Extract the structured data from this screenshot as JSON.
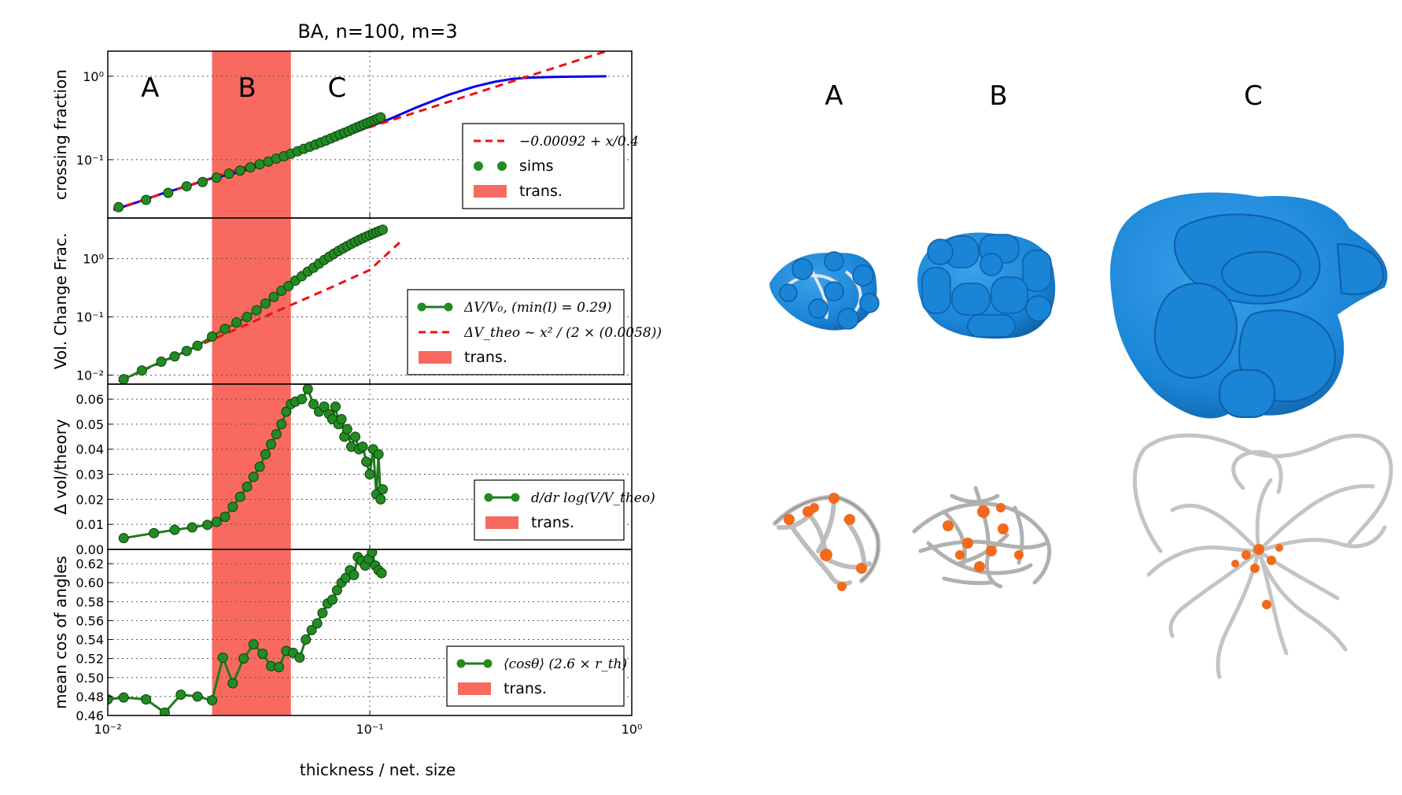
{
  "colors": {
    "band": "#f86a5f",
    "green": "#1f7a1f",
    "green_marker": "#228b22",
    "blue": "#0000ee",
    "red_dash": "#ee1111",
    "surface_blue": "#1a84d6",
    "tube_gray": "#bdbdbd",
    "node_orange": "#f26a1b"
  },
  "figure": {
    "title": "BA, n=100, m=3",
    "xlabel": "thickness / net. size",
    "x_ticks": [
      "10⁻²",
      "10⁻¹",
      "10⁰"
    ]
  },
  "region_labels": [
    "A",
    "B",
    "C"
  ],
  "renders": {
    "column_labels": [
      "A",
      "B",
      "C"
    ],
    "top_row": "blue-surface-renders",
    "bottom_row": "gray-tube-network-renders-with-orange-nodes"
  },
  "chart_data": [
    {
      "type": "line",
      "id": "crossing",
      "ylabel": "crossing fraction",
      "xscale": "log",
      "yscale": "log",
      "xlim": [
        0.01,
        1.0
      ],
      "ylim": [
        0.02,
        2.0
      ],
      "y_ticks": [
        {
          "v": 0.1,
          "label": "10⁻¹"
        },
        {
          "v": 1.0,
          "label": "10⁰"
        }
      ],
      "band": [
        0.025,
        0.05
      ],
      "grid": true,
      "legend_location": "lower-right",
      "legend": [
        {
          "kind": "dash",
          "label": "−0.00092 + x/0.4"
        },
        {
          "kind": "dots",
          "label": "sims"
        },
        {
          "kind": "band",
          "label": "trans."
        }
      ],
      "series": [
        {
          "kind": "blue-line",
          "x": [
            0.0105,
            0.013,
            0.016,
            0.02,
            0.025,
            0.03,
            0.04,
            0.05,
            0.06,
            0.08,
            0.1,
            0.12,
            0.15,
            0.2,
            0.25,
            0.3,
            0.35,
            0.4,
            0.5,
            0.6,
            0.7,
            0.8
          ],
          "y": [
            0.025,
            0.031,
            0.039,
            0.048,
            0.06,
            0.068,
            0.088,
            0.115,
            0.14,
            0.19,
            0.25,
            0.31,
            0.42,
            0.6,
            0.75,
            0.86,
            0.93,
            0.96,
            0.98,
            0.99,
            0.995,
            1.0
          ]
        },
        {
          "kind": "dash",
          "x": [
            0.0105,
            0.8
          ],
          "y": [
            0.0253,
            1.999
          ]
        },
        {
          "kind": "dots",
          "x": [
            0.011,
            0.014,
            0.017,
            0.02,
            0.023,
            0.026,
            0.029,
            0.032,
            0.035,
            0.038,
            0.041,
            0.044,
            0.047,
            0.05,
            0.053,
            0.056,
            0.059,
            0.062,
            0.065,
            0.068,
            0.071,
            0.074,
            0.077,
            0.08,
            0.083,
            0.086,
            0.089,
            0.092,
            0.095,
            0.098,
            0.101,
            0.104,
            0.107,
            0.11
          ],
          "y": [
            0.027,
            0.033,
            0.04,
            0.048,
            0.054,
            0.061,
            0.068,
            0.074,
            0.081,
            0.088,
            0.095,
            0.103,
            0.11,
            0.118,
            0.126,
            0.135,
            0.143,
            0.152,
            0.161,
            0.17,
            0.18,
            0.19,
            0.2,
            0.21,
            0.22,
            0.232,
            0.243,
            0.254,
            0.265,
            0.276,
            0.287,
            0.298,
            0.31,
            0.322
          ]
        }
      ]
    },
    {
      "type": "line",
      "id": "volume",
      "ylabel": "Vol. Change Frac.",
      "xscale": "log",
      "yscale": "log",
      "xlim": [
        0.01,
        1.0
      ],
      "ylim": [
        0.007,
        5.0
      ],
      "y_ticks": [
        {
          "v": 0.01,
          "label": "10⁻²"
        },
        {
          "v": 0.1,
          "label": "10⁻¹"
        },
        {
          "v": 1.0,
          "label": "10⁰"
        }
      ],
      "band": [
        0.025,
        0.05
      ],
      "grid": true,
      "legend_location": "center-right",
      "legend": [
        {
          "kind": "line-dots",
          "label": "ΔV/V₀, (min(l) = 0.29)"
        },
        {
          "kind": "dash",
          "label": "ΔV_theo ~ x² / (2 × (0.0058))"
        },
        {
          "kind": "band",
          "label": "trans."
        }
      ],
      "series": [
        {
          "kind": "dash",
          "x": [
            0.011,
            0.02,
            0.03,
            0.05,
            0.07,
            0.1,
            0.13
          ],
          "y": [
            0.0078,
            0.026,
            0.058,
            0.16,
            0.31,
            0.64,
            1.9
          ]
        },
        {
          "kind": "line-dots",
          "x": [
            0.0115,
            0.0135,
            0.016,
            0.018,
            0.02,
            0.022,
            0.025,
            0.028,
            0.031,
            0.034,
            0.037,
            0.04,
            0.043,
            0.046,
            0.049,
            0.052,
            0.055,
            0.058,
            0.061,
            0.064,
            0.067,
            0.07,
            0.073,
            0.076,
            0.079,
            0.082,
            0.085,
            0.088,
            0.091,
            0.094,
            0.097,
            0.1,
            0.103,
            0.106,
            0.109,
            0.112
          ],
          "y": [
            0.0085,
            0.012,
            0.017,
            0.021,
            0.026,
            0.032,
            0.046,
            0.062,
            0.08,
            0.1,
            0.13,
            0.17,
            0.22,
            0.28,
            0.34,
            0.42,
            0.5,
            0.6,
            0.7,
            0.82,
            0.95,
            1.08,
            1.22,
            1.36,
            1.5,
            1.65,
            1.8,
            1.95,
            2.1,
            2.25,
            2.4,
            2.55,
            2.7,
            2.85,
            3.0,
            3.15
          ]
        }
      ]
    },
    {
      "type": "line",
      "id": "dvol",
      "ylabel": "Δ vol/theory",
      "xscale": "log",
      "yscale": "linear",
      "xlim": [
        0.01,
        1.0
      ],
      "ylim": [
        0.0,
        0.066
      ],
      "y_ticks": [
        {
          "v": 0.0,
          "label": "0.00"
        },
        {
          "v": 0.01,
          "label": "0.01"
        },
        {
          "v": 0.02,
          "label": "0.02"
        },
        {
          "v": 0.03,
          "label": "0.03"
        },
        {
          "v": 0.04,
          "label": "0.04"
        },
        {
          "v": 0.05,
          "label": "0.05"
        },
        {
          "v": 0.06,
          "label": "0.06"
        }
      ],
      "band": [
        0.025,
        0.05
      ],
      "grid": true,
      "legend_location": "lower-right",
      "legend": [
        {
          "kind": "line-dots",
          "label": "d/dr log(V/V_theo)"
        },
        {
          "kind": "band",
          "label": "trans."
        }
      ],
      "series": [
        {
          "kind": "line-dots",
          "x": [
            0.0115,
            0.015,
            0.018,
            0.021,
            0.024,
            0.026,
            0.028,
            0.03,
            0.032,
            0.034,
            0.036,
            0.038,
            0.04,
            0.042,
            0.044,
            0.046,
            0.048,
            0.05,
            0.052,
            0.055,
            0.058,
            0.061,
            0.064,
            0.067,
            0.07,
            0.072,
            0.074,
            0.076,
            0.078,
            0.08,
            0.082,
            0.085,
            0.088,
            0.091,
            0.094,
            0.097,
            0.1,
            0.103,
            0.106,
            0.108,
            0.11,
            0.112
          ],
          "y": [
            0.0045,
            0.0065,
            0.0078,
            0.0088,
            0.0098,
            0.011,
            0.013,
            0.017,
            0.021,
            0.025,
            0.029,
            0.033,
            0.038,
            0.042,
            0.046,
            0.05,
            0.055,
            0.058,
            0.059,
            0.06,
            0.064,
            0.058,
            0.055,
            0.057,
            0.054,
            0.052,
            0.057,
            0.05,
            0.052,
            0.045,
            0.048,
            0.041,
            0.045,
            0.04,
            0.041,
            0.035,
            0.03,
            0.04,
            0.022,
            0.038,
            0.02,
            0.024
          ]
        }
      ]
    },
    {
      "type": "line",
      "id": "cos",
      "ylabel": "mean cos of angles",
      "xscale": "log",
      "yscale": "linear",
      "xlim": [
        0.01,
        1.0
      ],
      "ylim": [
        0.46,
        0.635
      ],
      "y_ticks": [
        {
          "v": 0.46,
          "label": "0.46"
        },
        {
          "v": 0.48,
          "label": "0.48"
        },
        {
          "v": 0.5,
          "label": "0.50"
        },
        {
          "v": 0.52,
          "label": "0.52"
        },
        {
          "v": 0.54,
          "label": "0.54"
        },
        {
          "v": 0.56,
          "label": "0.56"
        },
        {
          "v": 0.58,
          "label": "0.58"
        },
        {
          "v": 0.6,
          "label": "0.60"
        },
        {
          "v": 0.62,
          "label": "0.62"
        }
      ],
      "band": [
        0.025,
        0.05
      ],
      "grid": true,
      "legend_location": "lower-right",
      "legend": [
        {
          "kind": "line-dots",
          "label": "⟨cosθ⟩ (2.6 × r_th)"
        },
        {
          "kind": "band",
          "label": "trans."
        }
      ],
      "series": [
        {
          "kind": "line-dots",
          "x": [
            0.01,
            0.0115,
            0.014,
            0.0165,
            0.019,
            0.022,
            0.025,
            0.0275,
            0.03,
            0.033,
            0.036,
            0.039,
            0.042,
            0.045,
            0.048,
            0.051,
            0.054,
            0.057,
            0.06,
            0.063,
            0.066,
            0.069,
            0.072,
            0.075,
            0.078,
            0.081,
            0.084,
            0.087,
            0.09,
            0.093,
            0.096,
            0.099,
            0.102,
            0.105,
            0.108,
            0.111
          ],
          "y": [
            0.477,
            0.479,
            0.477,
            0.463,
            0.482,
            0.48,
            0.476,
            0.521,
            0.494,
            0.52,
            0.535,
            0.525,
            0.512,
            0.511,
            0.528,
            0.526,
            0.521,
            0.54,
            0.55,
            0.557,
            0.568,
            0.578,
            0.582,
            0.592,
            0.6,
            0.605,
            0.613,
            0.608,
            0.627,
            0.623,
            0.618,
            0.625,
            0.632,
            0.618,
            0.613,
            0.61
          ]
        }
      ]
    }
  ]
}
